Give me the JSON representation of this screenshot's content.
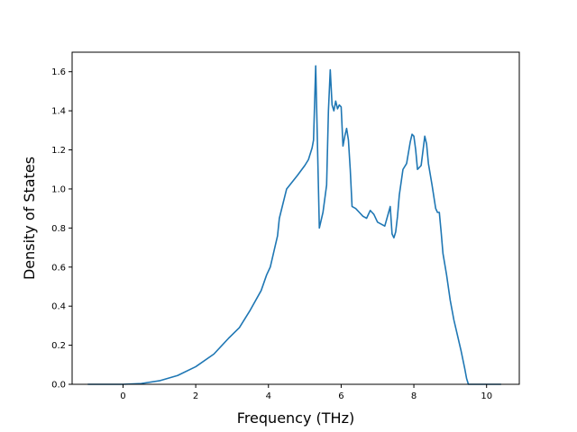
{
  "chart_data": {
    "type": "line",
    "title": "",
    "xlabel": "Frequency (THz)",
    "ylabel": "Density of States",
    "xlim": [
      -1.4,
      10.9
    ],
    "ylim": [
      0.0,
      1.7
    ],
    "xticks": [
      0,
      2,
      4,
      6,
      8,
      10
    ],
    "xtick_labels": [
      "0",
      "2",
      "4",
      "6",
      "8",
      "10"
    ],
    "yticks": [
      0.0,
      0.2,
      0.4,
      0.6,
      0.8,
      1.0,
      1.2,
      1.4,
      1.6
    ],
    "ytick_labels": [
      "0.0",
      "0.2",
      "0.4",
      "0.6",
      "0.8",
      "1.0",
      "1.2",
      "1.4",
      "1.6"
    ],
    "grid": false,
    "legend": "none",
    "series": [
      {
        "color": "#1f77b4",
        "x": [
          -0.97,
          0.0,
          0.5,
          1.0,
          1.5,
          2.0,
          2.5,
          2.9,
          3.2,
          3.5,
          3.8,
          3.95,
          4.05,
          4.15,
          4.25,
          4.3,
          4.5,
          4.8,
          5.0,
          5.1,
          5.15,
          5.2,
          5.24,
          5.3,
          5.4,
          5.5,
          5.6,
          5.65,
          5.7,
          5.75,
          5.8,
          5.85,
          5.9,
          5.95,
          6.0,
          6.05,
          6.1,
          6.15,
          6.2,
          6.25,
          6.3,
          6.4,
          6.5,
          6.6,
          6.7,
          6.8,
          6.85,
          6.9,
          7.0,
          7.2,
          7.35,
          7.4,
          7.45,
          7.5,
          7.55,
          7.6,
          7.7,
          7.8,
          7.9,
          7.95,
          8.0,
          8.05,
          8.1,
          8.2,
          8.3,
          8.35,
          8.4,
          8.5,
          8.6,
          8.65,
          8.7,
          8.75,
          8.8,
          8.9,
          9.0,
          9.05,
          9.1,
          9.2,
          9.3,
          9.4,
          9.45,
          9.5,
          10.0,
          10.4
        ],
        "y": [
          0.0,
          0.0,
          0.004,
          0.018,
          0.045,
          0.09,
          0.155,
          0.235,
          0.29,
          0.38,
          0.48,
          0.56,
          0.6,
          0.68,
          0.76,
          0.85,
          1.0,
          1.07,
          1.12,
          1.15,
          1.18,
          1.21,
          1.25,
          1.63,
          0.8,
          0.88,
          1.02,
          1.4,
          1.61,
          1.43,
          1.4,
          1.45,
          1.41,
          1.43,
          1.42,
          1.22,
          1.27,
          1.31,
          1.25,
          1.1,
          0.91,
          0.9,
          0.88,
          0.86,
          0.85,
          0.89,
          0.88,
          0.87,
          0.83,
          0.81,
          0.91,
          0.77,
          0.75,
          0.78,
          0.86,
          0.97,
          1.1,
          1.13,
          1.24,
          1.28,
          1.27,
          1.2,
          1.1,
          1.12,
          1.27,
          1.23,
          1.13,
          1.02,
          0.9,
          0.88,
          0.88,
          0.78,
          0.67,
          0.56,
          0.43,
          0.38,
          0.33,
          0.25,
          0.17,
          0.08,
          0.03,
          0.0,
          0.0,
          0.0
        ]
      }
    ]
  }
}
